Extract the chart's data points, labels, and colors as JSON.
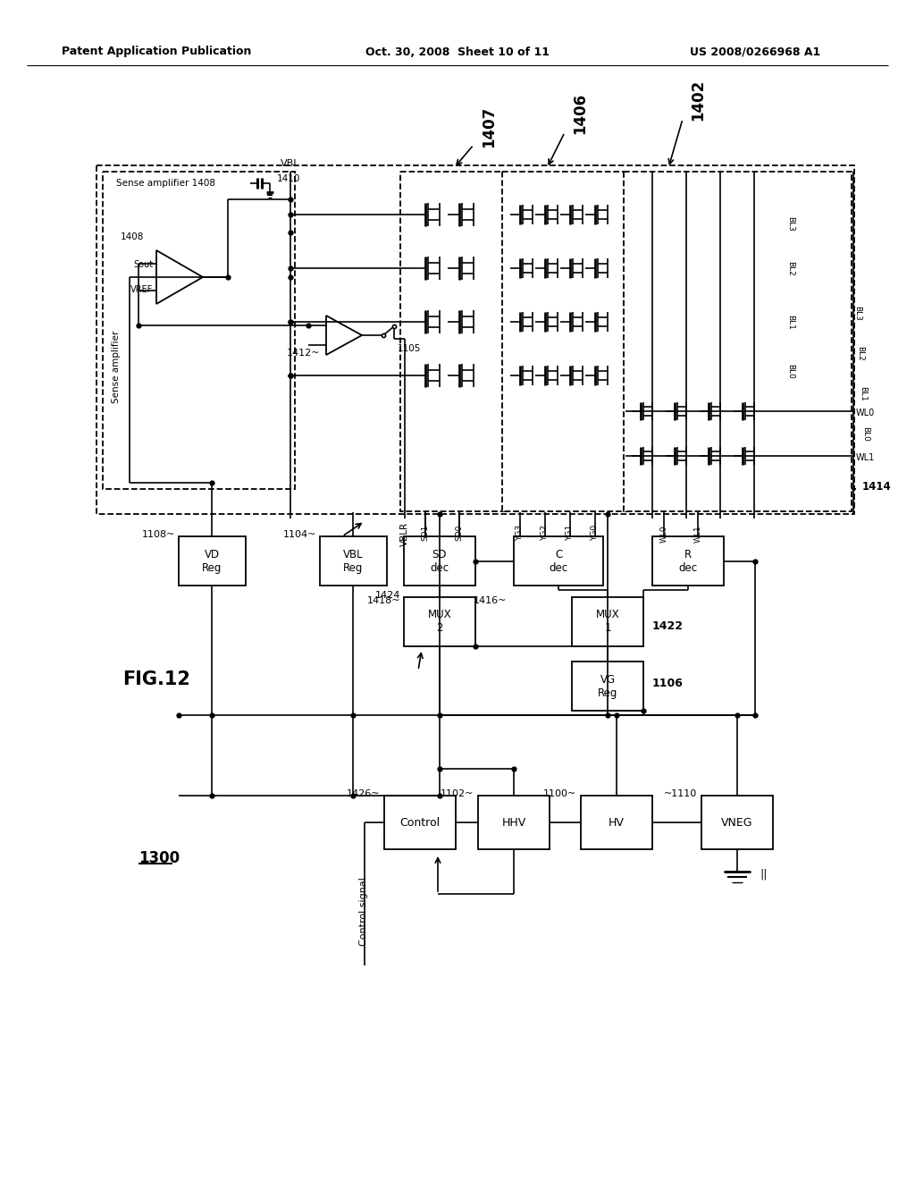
{
  "header_left": "Patent Application Publication",
  "header_center": "Oct. 30, 2008  Sheet 10 of 11",
  "header_right": "US 2008/0266968 A1",
  "fig_label": "FIG.12",
  "main_label": "1300",
  "bg": "#ffffff"
}
